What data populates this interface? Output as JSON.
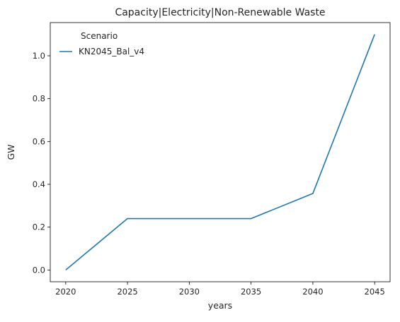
{
  "chart_data": {
    "type": "line",
    "title": "Capacity|Electricity|Non-Renewable Waste",
    "xlabel": "years",
    "ylabel": "GW",
    "x": [
      2020,
      2025,
      2030,
      2035,
      2040,
      2045
    ],
    "xticks": [
      "2020",
      "2025",
      "2030",
      "2035",
      "2040",
      "2045"
    ],
    "yticks": [
      "0.0",
      "0.2",
      "0.4",
      "0.6",
      "0.8",
      "1.0"
    ],
    "xlim": [
      2018.75,
      2046.25
    ],
    "ylim": [
      -0.055,
      1.155
    ],
    "grid": false,
    "legend": {
      "title": "Scenario",
      "placement": "top-left"
    },
    "series": [
      {
        "name": "KN2045_Bal_v4",
        "color": "#1f77b4",
        "values": [
          0.0,
          0.24,
          0.24,
          0.24,
          0.357,
          1.1
        ]
      }
    ]
  }
}
